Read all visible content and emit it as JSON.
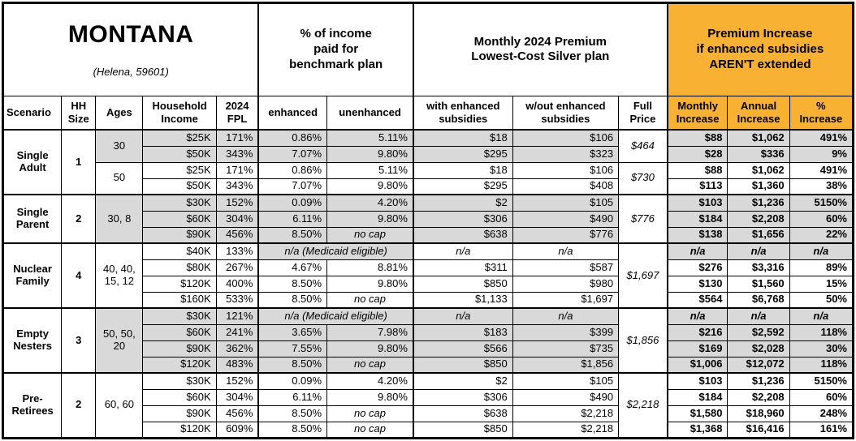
{
  "chart_data": {
    "type": "table",
    "title": {
      "state": "MONTANA",
      "location": "(Helena, 59601)"
    },
    "section_headers": {
      "income_share": "% of income\npaid for\nbenchmark plan",
      "premium": "Monthly 2024 Premium\nLowest-Cost Silver plan",
      "increase": "Premium Increase\nif enhanced subsidies\nAREN'T extended"
    },
    "columns": {
      "scenario": "Scenario",
      "hh_size": "HH\nSize",
      "ages": "Ages",
      "income": "Household\nIncome",
      "fpl": "2024\nFPL",
      "enhanced": "enhanced",
      "unenhanced": "unenhanced",
      "with_sub": "with enhanced\nsubsidies",
      "without_sub": "w/out enhanced\nsubsidies",
      "full_price": "Full\nPrice",
      "monthly": "Monthly\nIncrease",
      "annual": "Annual\nIncrease",
      "pct": "%\nIncrease"
    },
    "labels": {
      "no_cap": "no cap",
      "na": "n/a",
      "medicaid": "n/a (Medicaid eligible)"
    },
    "colors": {
      "highlight": "#F8B133",
      "shading": "#D9D9D9",
      "border": "#000000"
    },
    "groups": [
      {
        "scenario": "Single Adult",
        "hh_size": "1",
        "blocks": [
          {
            "ages": "30",
            "full_price": "$464",
            "shaded": true,
            "rows": [
              {
                "income": "$25K",
                "fpl": "171%",
                "enhanced": "0.86%",
                "unenhanced": "5.11%",
                "with_sub": "$18",
                "without_sub": "$106",
                "monthly": "$88",
                "annual": "$1,062",
                "pct": "491%"
              },
              {
                "income": "$50K",
                "fpl": "343%",
                "enhanced": "7.07%",
                "unenhanced": "9.80%",
                "with_sub": "$295",
                "without_sub": "$323",
                "monthly": "$28",
                "annual": "$336",
                "pct": "9%"
              }
            ]
          },
          {
            "ages": "50",
            "full_price": "$730",
            "shaded": false,
            "rows": [
              {
                "income": "$25K",
                "fpl": "171%",
                "enhanced": "0.86%",
                "unenhanced": "5.11%",
                "with_sub": "$18",
                "without_sub": "$106",
                "monthly": "$88",
                "annual": "$1,062",
                "pct": "491%"
              },
              {
                "income": "$50K",
                "fpl": "343%",
                "enhanced": "7.07%",
                "unenhanced": "9.80%",
                "with_sub": "$295",
                "without_sub": "$408",
                "monthly": "$113",
                "annual": "$1,360",
                "pct": "38%"
              }
            ]
          }
        ]
      },
      {
        "scenario": "Single Parent",
        "hh_size": "2",
        "blocks": [
          {
            "ages": "30, 8",
            "full_price": "$776",
            "shaded": true,
            "rows": [
              {
                "income": "$30K",
                "fpl": "152%",
                "enhanced": "0.09%",
                "unenhanced": "4.20%",
                "with_sub": "$2",
                "without_sub": "$105",
                "monthly": "$103",
                "annual": "$1,236",
                "pct": "5150%"
              },
              {
                "income": "$60K",
                "fpl": "304%",
                "enhanced": "6.11%",
                "unenhanced": "9.80%",
                "with_sub": "$306",
                "without_sub": "$490",
                "monthly": "$184",
                "annual": "$2,208",
                "pct": "60%"
              },
              {
                "income": "$90K",
                "fpl": "456%",
                "enhanced": "8.50%",
                "unenhanced": "no cap",
                "with_sub": "$638",
                "without_sub": "$776",
                "monthly": "$138",
                "annual": "$1,656",
                "pct": "22%"
              }
            ]
          }
        ]
      },
      {
        "scenario": "Nuclear Family",
        "hh_size": "4",
        "blocks": [
          {
            "ages": "40, 40,\n15, 12",
            "full_price": "$1,697",
            "shaded": false,
            "rows": [
              {
                "income": "$40K",
                "fpl": "133%",
                "medicaid": true,
                "with_sub": "n/a",
                "without_sub": "n/a",
                "monthly": "n/a",
                "annual": "n/a",
                "pct": "n/a"
              },
              {
                "income": "$80K",
                "fpl": "267%",
                "enhanced": "4.67%",
                "unenhanced": "8.81%",
                "with_sub": "$311",
                "without_sub": "$587",
                "monthly": "$276",
                "annual": "$3,316",
                "pct": "89%"
              },
              {
                "income": "$120K",
                "fpl": "400%",
                "enhanced": "8.50%",
                "unenhanced": "9.80%",
                "with_sub": "$850",
                "without_sub": "$980",
                "monthly": "$130",
                "annual": "$1,560",
                "pct": "15%"
              },
              {
                "income": "$160K",
                "fpl": "533%",
                "enhanced": "8.50%",
                "unenhanced": "no cap",
                "with_sub": "$1,133",
                "without_sub": "$1,697",
                "monthly": "$564",
                "annual": "$6,768",
                "pct": "50%"
              }
            ]
          }
        ]
      },
      {
        "scenario": "Empty Nesters",
        "hh_size": "3",
        "blocks": [
          {
            "ages": "50, 50,\n20",
            "full_price": "$1,856",
            "shaded": true,
            "rows": [
              {
                "income": "$30K",
                "fpl": "121%",
                "medicaid": true,
                "with_sub": "n/a",
                "without_sub": "n/a",
                "monthly": "n/a",
                "annual": "n/a",
                "pct": "n/a"
              },
              {
                "income": "$60K",
                "fpl": "241%",
                "enhanced": "3.65%",
                "unenhanced": "7.98%",
                "with_sub": "$183",
                "without_sub": "$399",
                "monthly": "$216",
                "annual": "$2,592",
                "pct": "118%"
              },
              {
                "income": "$90K",
                "fpl": "362%",
                "enhanced": "7.55%",
                "unenhanced": "9.80%",
                "with_sub": "$566",
                "without_sub": "$735",
                "monthly": "$169",
                "annual": "$2,028",
                "pct": "30%"
              },
              {
                "income": "$120K",
                "fpl": "483%",
                "enhanced": "8.50%",
                "unenhanced": "no cap",
                "with_sub": "$850",
                "without_sub": "$1,856",
                "monthly": "$1,006",
                "annual": "$12,072",
                "pct": "118%"
              }
            ]
          }
        ]
      },
      {
        "scenario": "Pre-Retirees",
        "hh_size": "2",
        "blocks": [
          {
            "ages": "60, 60",
            "full_price": "$2,218",
            "shaded": false,
            "rows": [
              {
                "income": "$30K",
                "fpl": "152%",
                "enhanced": "0.09%",
                "unenhanced": "4.20%",
                "with_sub": "$2",
                "without_sub": "$105",
                "monthly": "$103",
                "annual": "$1,236",
                "pct": "5150%"
              },
              {
                "income": "$60K",
                "fpl": "304%",
                "enhanced": "6.11%",
                "unenhanced": "9.80%",
                "with_sub": "$306",
                "without_sub": "$490",
                "monthly": "$184",
                "annual": "$2,208",
                "pct": "60%"
              },
              {
                "income": "$90K",
                "fpl": "456%",
                "enhanced": "8.50%",
                "unenhanced": "no cap",
                "with_sub": "$638",
                "without_sub": "$2,218",
                "monthly": "$1,580",
                "annual": "$18,960",
                "pct": "248%"
              },
              {
                "income": "$120K",
                "fpl": "609%",
                "enhanced": "8.50%",
                "unenhanced": "no cap",
                "with_sub": "$850",
                "without_sub": "$2,218",
                "monthly": "$1,368",
                "annual": "$16,416",
                "pct": "161%"
              }
            ]
          }
        ]
      }
    ]
  }
}
